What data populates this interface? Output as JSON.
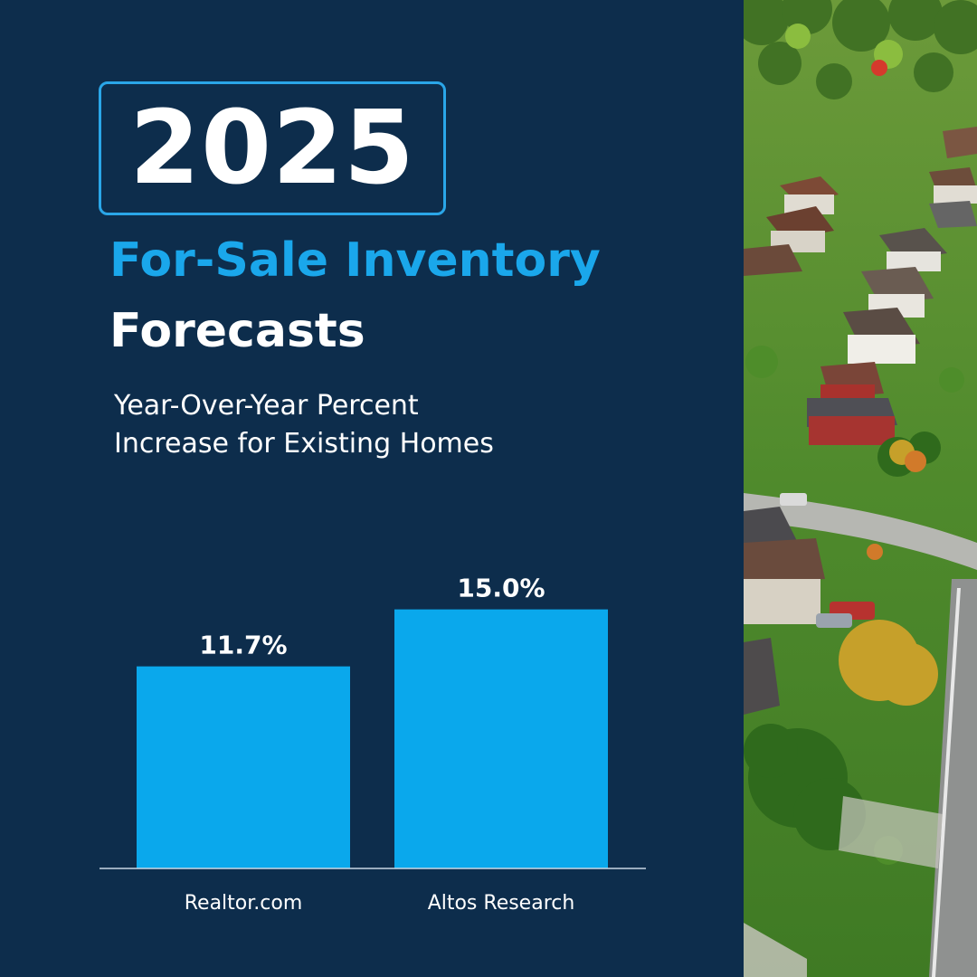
{
  "header": {
    "year": "2025",
    "title_line1": "For-Sale Inventory",
    "title_line2": "Forecasts",
    "subtitle_line1": "Year-Over-Year Percent",
    "subtitle_line2": "Increase for Existing Homes"
  },
  "chart_data": {
    "type": "bar",
    "title": "For-Sale Inventory Forecasts",
    "subtitle": "Year-Over-Year Percent Increase for Existing Homes",
    "categories": [
      "Realtor.com",
      "Altos Research"
    ],
    "values": [
      11.7,
      15.0
    ],
    "data_labels": [
      "11.7%",
      "15.0%"
    ],
    "ylim": [
      0,
      22
    ],
    "grid": false,
    "bar_color": "#0aa8ec",
    "label_color": "#ffffff"
  },
  "colors": {
    "background": "#0d2d4c",
    "accent": "#1aa7eb",
    "text": "#ffffff"
  },
  "photo": {
    "description_icon": "aerial-neighborhood-photo"
  }
}
